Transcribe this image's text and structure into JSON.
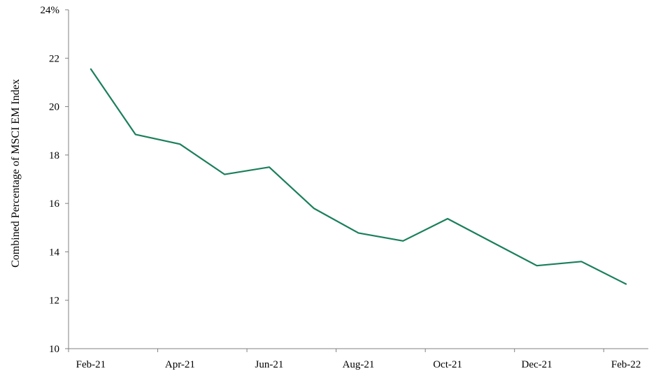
{
  "chart_data": {
    "type": "line",
    "title": "",
    "xlabel": "",
    "ylabel": "Combined Percentage of MSCI EM Index",
    "x": [
      "Feb-21",
      "Mar-21",
      "Apr-21",
      "May-21",
      "Jun-21",
      "Jul-21",
      "Aug-21",
      "Sep-21",
      "Oct-21",
      "Nov-21",
      "Dec-21",
      "Jan-22",
      "Feb-22"
    ],
    "x_tick_labels": [
      "Feb-21",
      "Apr-21",
      "Jun-21",
      "Aug-21",
      "Oct-21",
      "Dec-21",
      "Feb-22"
    ],
    "series": [
      {
        "values": [
          21.55,
          18.85,
          18.45,
          17.2,
          17.5,
          15.8,
          14.78,
          14.45,
          15.37,
          14.4,
          13.43,
          13.6,
          12.67
        ]
      }
    ],
    "ylim": [
      10,
      24
    ],
    "y_ticks": [
      10,
      12,
      14,
      16,
      18,
      20,
      22,
      24
    ],
    "y_tick_labels": [
      "10",
      "12",
      "14",
      "16",
      "18",
      "20",
      "22",
      "24%"
    ],
    "grid": false,
    "legend": "none",
    "line_color": "#1a7f5a"
  }
}
